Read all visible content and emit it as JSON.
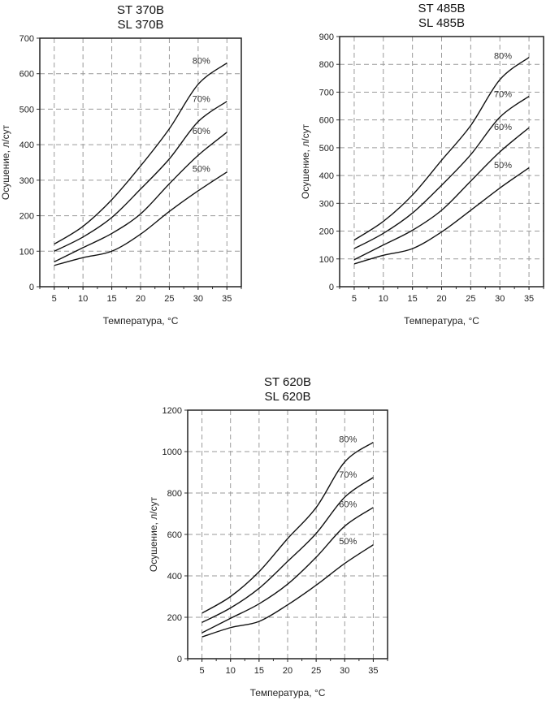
{
  "chart_data": [
    {
      "type": "line",
      "title": [
        "ST 370B",
        "SL 370B"
      ],
      "xlabel": "Температура, °C",
      "ylabel": "Осушение, л/сут",
      "xlim": [
        2.5,
        37.5
      ],
      "ylim": [
        0,
        700
      ],
      "xticks": [
        5,
        10,
        15,
        20,
        25,
        30,
        35
      ],
      "yticks": [
        0,
        100,
        200,
        300,
        400,
        500,
        600,
        700
      ],
      "grid": true,
      "x": [
        5,
        10,
        15,
        20,
        25,
        30,
        35
      ],
      "series": [
        {
          "name": "80%",
          "values": [
            120,
            170,
            245,
            340,
            445,
            570,
            630
          ]
        },
        {
          "name": "70%",
          "values": [
            100,
            140,
            195,
            275,
            360,
            465,
            522
          ]
        },
        {
          "name": "60%",
          "values": [
            70,
            110,
            150,
            205,
            290,
            370,
            435
          ]
        },
        {
          "name": "50%",
          "values": [
            60,
            82,
            100,
            148,
            212,
            270,
            323
          ]
        }
      ]
    },
    {
      "type": "line",
      "title": [
        "ST 485B",
        "SL 485B"
      ],
      "xlabel": "Температура, °C",
      "ylabel": "Осушение, л/сут",
      "xlim": [
        2.5,
        37.5
      ],
      "ylim": [
        0,
        900
      ],
      "xticks": [
        5,
        10,
        15,
        20,
        25,
        30,
        35
      ],
      "yticks": [
        0,
        100,
        200,
        300,
        400,
        500,
        600,
        700,
        800,
        900
      ],
      "grid": true,
      "x": [
        5,
        10,
        15,
        20,
        25,
        30,
        35
      ],
      "series": [
        {
          "name": "80%",
          "values": [
            168,
            235,
            330,
            455,
            580,
            745,
            825
          ]
        },
        {
          "name": "70%",
          "values": [
            137,
            192,
            265,
            365,
            475,
            610,
            685
          ]
        },
        {
          "name": "60%",
          "values": [
            97,
            150,
            203,
            275,
            380,
            485,
            572
          ]
        },
        {
          "name": "50%",
          "values": [
            82,
            113,
            137,
            197,
            275,
            355,
            428
          ]
        }
      ]
    },
    {
      "type": "line",
      "title": [
        "ST 620B",
        "SL 620B"
      ],
      "xlabel": "Температура, °C",
      "ylabel": "Осушение, л/сут",
      "xlim": [
        2.5,
        37.5
      ],
      "ylim": [
        0,
        1200
      ],
      "xticks": [
        5,
        10,
        15,
        20,
        25,
        30,
        35
      ],
      "yticks": [
        0,
        200,
        400,
        600,
        800,
        1000,
        1200
      ],
      "grid": true,
      "x": [
        5,
        10,
        15,
        20,
        25,
        30,
        35
      ],
      "series": [
        {
          "name": "80%",
          "values": [
            220,
            300,
            420,
            580,
            730,
            950,
            1045
          ]
        },
        {
          "name": "70%",
          "values": [
            175,
            245,
            340,
            470,
            605,
            780,
            875
          ]
        },
        {
          "name": "60%",
          "values": [
            125,
            195,
            265,
            360,
            490,
            640,
            730
          ]
        },
        {
          "name": "50%",
          "values": [
            105,
            150,
            180,
            260,
            355,
            460,
            550
          ]
        }
      ]
    }
  ]
}
